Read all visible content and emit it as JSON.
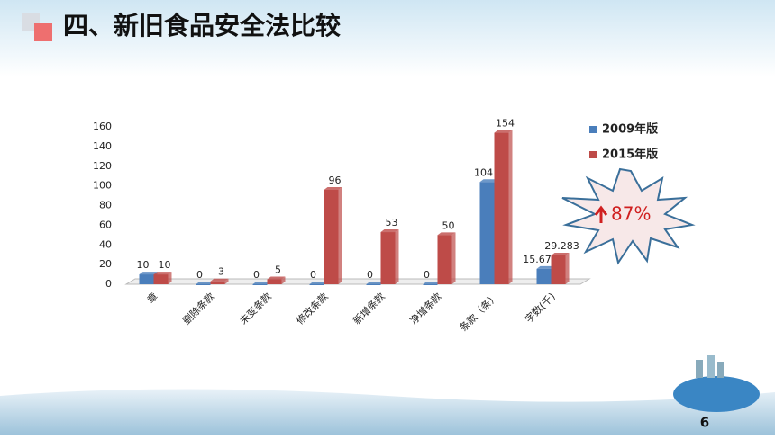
{
  "header": {
    "title": "四、新旧食品安全法比较"
  },
  "page_number": 6,
  "chart_data": {
    "type": "bar",
    "categories": [
      "章",
      "删除条款",
      "未变条款",
      "修改条款",
      "新增条款",
      "净增条款",
      "条款（条）",
      "字数(千)"
    ],
    "series": [
      {
        "name": "2009年版",
        "color": "#4a7ebb",
        "values": [
          10,
          0,
          0,
          0,
          0,
          0,
          104,
          15.671
        ]
      },
      {
        "name": "2015年版",
        "color": "#be4b48",
        "values": [
          10,
          3,
          5,
          96,
          53,
          50,
          154,
          29.283
        ]
      }
    ],
    "ylim": [
      0,
      160
    ],
    "yticks": [
      0,
      20,
      40,
      60,
      80,
      100,
      120,
      140,
      160
    ],
    "grid": false,
    "legend": "top-right",
    "annotation": "87%"
  }
}
